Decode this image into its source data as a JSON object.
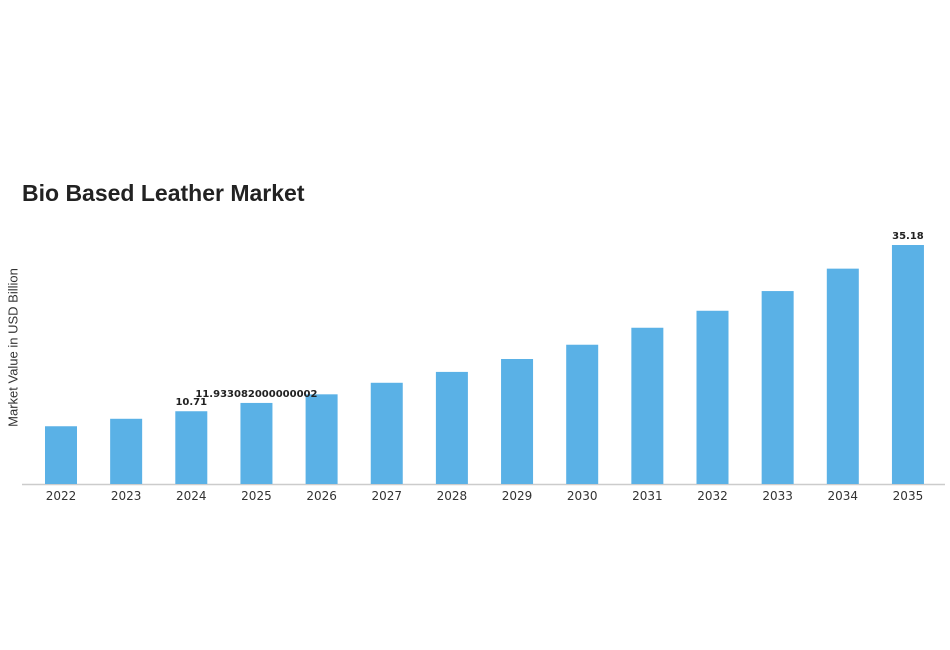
{
  "chart_data": {
    "type": "bar",
    "title": "Bio Based Leather Market",
    "xlabel": "",
    "ylabel": "Market Value in USD Billion",
    "categories": [
      "2022",
      "2023",
      "2024",
      "2025",
      "2026",
      "2027",
      "2028",
      "2029",
      "2030",
      "2031",
      "2032",
      "2033",
      "2034",
      "2035"
    ],
    "values": [
      8.5,
      9.6,
      10.71,
      11.933082000000002,
      13.2,
      14.9,
      16.5,
      18.4,
      20.5,
      23.0,
      25.5,
      28.4,
      31.7,
      35.18
    ],
    "data_labels": [
      {
        "category": "2024",
        "text": "10.71"
      },
      {
        "category": "2025",
        "text": "11.933082000000002"
      },
      {
        "category": "2035",
        "text": "35.18"
      }
    ],
    "ylim": [
      0,
      35.18
    ],
    "grid": false,
    "bar_color": "#5ab1e6"
  }
}
